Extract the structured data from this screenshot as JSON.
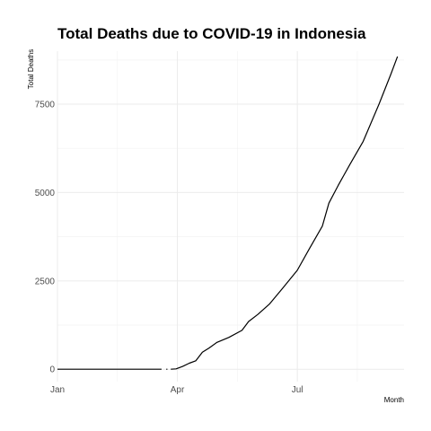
{
  "chart_data": {
    "type": "line",
    "title": "Total Deaths due to COVID-19 in Indonesia",
    "xlabel": "Month",
    "ylabel": "Total Deaths",
    "xlim": [
      "2020-01-01",
      "2020-09-20"
    ],
    "ylim": [
      -350,
      9000
    ],
    "x_ticks": [
      {
        "label": "Jan",
        "date": "2020-01-01"
      },
      {
        "label": "Apr",
        "date": "2020-04-01"
      },
      {
        "label": "Jul",
        "date": "2020-07-01"
      }
    ],
    "y_ticks": [
      0,
      2500,
      5000,
      7500
    ],
    "grid": true,
    "series": [
      {
        "segments": [
          [
            {
              "x": "2020-01-01",
              "y": 0
            },
            {
              "x": "2020-02-01",
              "y": 0
            },
            {
              "x": "2020-03-01",
              "y": 0
            },
            {
              "x": "2020-03-20",
              "y": 0
            }
          ],
          [
            {
              "x": "2020-03-24",
              "y": 0
            }
          ],
          [
            {
              "x": "2020-03-27",
              "y": 0
            },
            {
              "x": "2020-03-31",
              "y": 10
            },
            {
              "x": "2020-04-05",
              "y": 80
            },
            {
              "x": "2020-04-10",
              "y": 170
            },
            {
              "x": "2020-04-15",
              "y": 240
            },
            {
              "x": "2020-04-20",
              "y": 480
            },
            {
              "x": "2020-04-25",
              "y": 600
            },
            {
              "x": "2020-05-01",
              "y": 760
            },
            {
              "x": "2020-05-10",
              "y": 900
            },
            {
              "x": "2020-05-20",
              "y": 1100
            },
            {
              "x": "2020-05-25",
              "y": 1350
            },
            {
              "x": "2020-06-01",
              "y": 1550
            },
            {
              "x": "2020-06-10",
              "y": 1850
            },
            {
              "x": "2020-06-20",
              "y": 2300
            },
            {
              "x": "2020-07-01",
              "y": 2800
            },
            {
              "x": "2020-07-10",
              "y": 3400
            },
            {
              "x": "2020-07-20",
              "y": 4050
            },
            {
              "x": "2020-07-25",
              "y": 4700
            },
            {
              "x": "2020-08-01",
              "y": 5200
            },
            {
              "x": "2020-08-10",
              "y": 5800
            },
            {
              "x": "2020-08-20",
              "y": 6450
            },
            {
              "x": "2020-09-01",
              "y": 7500
            },
            {
              "x": "2020-09-10",
              "y": 8350
            },
            {
              "x": "2020-09-15",
              "y": 8850
            }
          ]
        ]
      }
    ]
  }
}
